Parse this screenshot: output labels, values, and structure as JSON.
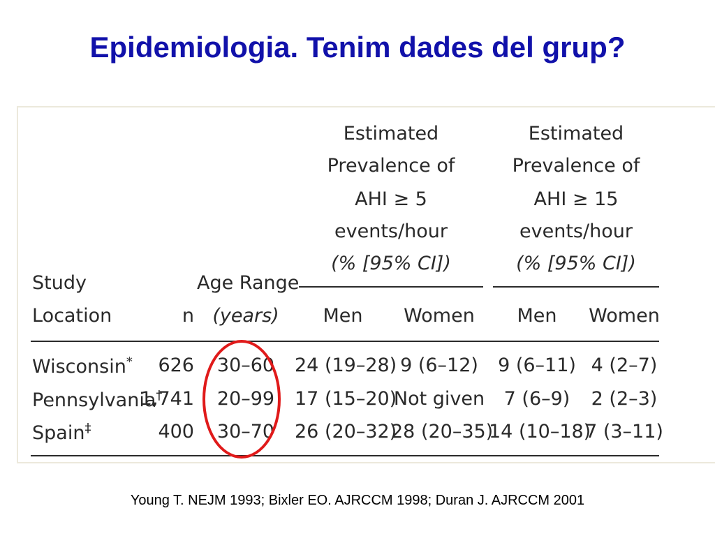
{
  "title": "Epidemiologia. Tenim dades del grup?",
  "table": {
    "group1": {
      "lines": [
        "Estimated",
        "Prevalence of",
        "AHI ≥ 5",
        "events/hour",
        "(% [95% CI])"
      ]
    },
    "group2": {
      "lines": [
        "Estimated",
        "Prevalence of",
        "AHI ≥ 15",
        "events/hour",
        "(% [95% CI])"
      ]
    },
    "headers": {
      "study_line1": "Study",
      "study_line2": "Location",
      "n": "n",
      "age_line1": "Age Range",
      "age_line2": "(years)",
      "men1": "Men",
      "women1": "Women",
      "men2": "Men",
      "women2": "Women"
    },
    "rows": [
      {
        "location": "Wisconsin",
        "mark": "*",
        "n": "626",
        "age": "30–60",
        "men5": "24 (19–28)",
        "women5": "9 (6–12)",
        "men15": "9 (6–11)",
        "women15": "4 (2–7)"
      },
      {
        "location": "Pennsylvania",
        "mark": "†",
        "n": "1,741",
        "age": "20–99",
        "men5": "17 (15–20)",
        "women5": "Not given",
        "men15": "7 (6–9)",
        "women15": "2 (2–3)"
      },
      {
        "location": "Spain",
        "mark": "‡",
        "n": "400",
        "age": "30–70",
        "men5": "26 (20–32)",
        "women5": "28 (20–35)",
        "men15": "14 (10–18)",
        "women15": "7 (3–11)"
      }
    ]
  },
  "citation": "Young T. NEJM 1993; Bixler EO. AJRCCM 1998; Duran J. AJRCCM 2001",
  "colors": {
    "title": "#1111aa",
    "highlight_circle": "#e01a1a",
    "table_text": "#2a2a2a"
  }
}
